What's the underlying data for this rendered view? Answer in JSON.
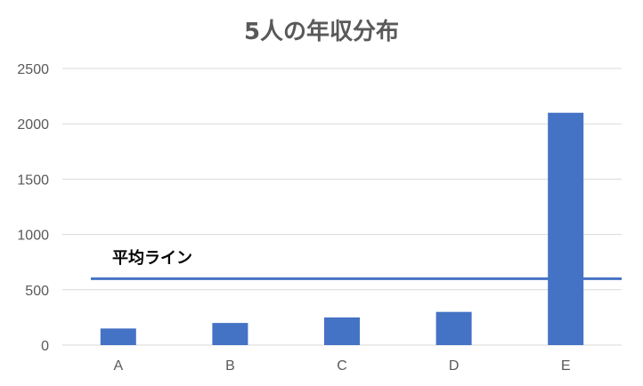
{
  "chart_data": {
    "type": "bar",
    "title": "5人の年収分布",
    "categories": [
      "A",
      "B",
      "C",
      "D",
      "E"
    ],
    "values": [
      150,
      200,
      250,
      300,
      2100
    ],
    "ylim": [
      0,
      2500
    ],
    "yticks": [
      0,
      500,
      1000,
      1500,
      2000,
      2500
    ],
    "grid": true,
    "legend": "none",
    "reference_line": {
      "label": "平均ライン",
      "value": 600
    },
    "colors": {
      "bar": "#4472C4",
      "reference_line": "#4472C4",
      "grid": "#D9D9D9",
      "axis_text": "#595959"
    }
  }
}
